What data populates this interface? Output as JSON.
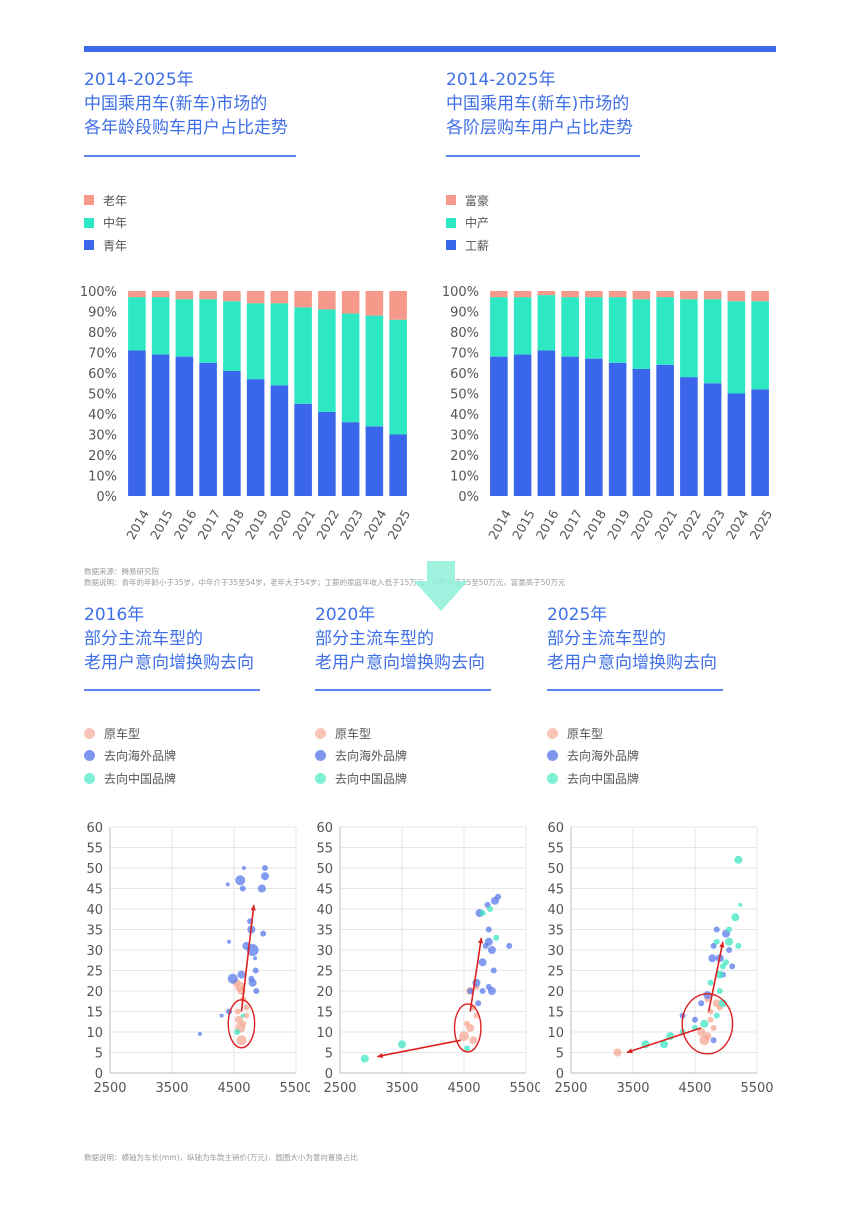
{
  "colors": {
    "accent": "#3b6be8",
    "old": "#f6998a",
    "middle": "#2ee8c4",
    "young": "#3a66ec",
    "arrow": "#dd2020",
    "circle": "#dd2020",
    "scatter_original": "#f5a896",
    "scatter_overseas": "#5b7be9",
    "scatter_china": "#3fe6c3"
  },
  "titles": {
    "age": [
      "2014-2025年",
      "中国乘用车(新车)市场的",
      "各年龄段购车用户占比走势"
    ],
    "tier": [
      "2014-2025年",
      "中国乘用车(新车)市场的",
      "各阶层购车用户占比走势"
    ],
    "s2016": [
      "2016年",
      "部分主流车型的",
      "老用户意向增换购去向"
    ],
    "s2020": [
      "2020年",
      "部分主流车型的",
      "老用户意向增换购去向"
    ],
    "s2025": [
      "2025年",
      "部分主流车型的",
      "老用户意向增换购去向"
    ]
  },
  "legends": {
    "age": [
      "老年",
      "中年",
      "青年"
    ],
    "tier": [
      "富豪",
      "中产",
      "工薪"
    ],
    "scatter": [
      "原车型",
      "去向海外品牌",
      "去向中国品牌"
    ]
  },
  "notes": {
    "source": "数据来源：腾易研究院",
    "explain": "数据说明：青年的年龄小于35岁，中年介于35至54岁，老年大于54岁；工薪的家庭年收入低于15万元，中产介于15至50万元，富豪高于50万元",
    "bottom": "数据说明：横轴为车长(mm)，纵轴为车款主销价(万元)，圆圈大小为意向置换占比"
  },
  "chart_data": [
    {
      "id": "age",
      "type": "bar",
      "stacked": true,
      "title": "2014-2025年 中国乘用车(新车)市场的 各年龄段购车用户占比走势",
      "categories": [
        "2014",
        "2015",
        "2016",
        "2017",
        "2018",
        "2019",
        "2020",
        "2021",
        "2022",
        "2023",
        "2024",
        "2025"
      ],
      "series": [
        {
          "name": "青年",
          "color": "#3a66ec",
          "values": [
            71,
            69,
            68,
            65,
            61,
            57,
            54,
            45,
            41,
            36,
            34,
            30
          ]
        },
        {
          "name": "中年",
          "color": "#2ee8c4",
          "values": [
            26,
            28,
            28,
            31,
            34,
            37,
            40,
            47,
            50,
            53,
            54,
            56
          ]
        },
        {
          "name": "老年",
          "color": "#f6998a",
          "values": [
            3,
            3,
            4,
            4,
            5,
            6,
            6,
            8,
            9,
            11,
            12,
            14
          ]
        }
      ],
      "ylim": [
        0,
        100
      ],
      "yticks": [
        "0%",
        "10%",
        "20%",
        "30%",
        "40%",
        "50%",
        "60%",
        "70%",
        "80%",
        "90%",
        "100%"
      ]
    },
    {
      "id": "tier",
      "type": "bar",
      "stacked": true,
      "title": "2014-2025年 中国乘用车(新车)市场的 各阶层购车用户占比走势",
      "categories": [
        "2014",
        "2015",
        "2016",
        "2017",
        "2018",
        "2019",
        "2020",
        "2021",
        "2022",
        "2023",
        "2024",
        "2025"
      ],
      "series": [
        {
          "name": "工薪",
          "color": "#3a66ec",
          "values": [
            68,
            69,
            71,
            68,
            67,
            65,
            62,
            64,
            58,
            55,
            50,
            52
          ]
        },
        {
          "name": "中产",
          "color": "#2ee8c4",
          "values": [
            29,
            28,
            27,
            29,
            30,
            32,
            34,
            33,
            38,
            41,
            45,
            43
          ]
        },
        {
          "name": "富豪",
          "color": "#f6998a",
          "values": [
            3,
            3,
            2,
            3,
            3,
            3,
            4,
            3,
            4,
            4,
            5,
            5
          ]
        }
      ],
      "ylim": [
        0,
        100
      ],
      "yticks": [
        "0%",
        "10%",
        "20%",
        "30%",
        "40%",
        "50%",
        "60%",
        "70%",
        "80%",
        "90%",
        "100%"
      ]
    },
    {
      "id": "s2016",
      "type": "scatter",
      "title": "2016年 部分主流车型的 老用户意向增换购去向",
      "xlabel": "车长(mm)",
      "ylabel": "主销价(万元)",
      "xlim": [
        2500,
        5500
      ],
      "ylim": [
        0,
        60
      ],
      "xticks": [
        "2500",
        "3500",
        "4500",
        "5500"
      ],
      "yticks": [
        "0",
        "5",
        "10",
        "15",
        "20",
        "25",
        "30",
        "35",
        "40",
        "45",
        "50",
        "55",
        "60"
      ],
      "series": [
        {
          "name": "原车型",
          "color": "#f5a896",
          "points": [
            [
              4600,
              11,
              5
            ],
            [
              4620,
              8,
              5
            ],
            [
              4580,
              13,
              4
            ],
            [
              4650,
              12,
              3
            ],
            [
              4560,
              15,
              3
            ],
            [
              4700,
              14,
              3
            ],
            [
              4600,
              21,
              5
            ],
            [
              4620,
              20,
              4
            ],
            [
              4540,
              22,
              4
            ],
            [
              4650,
              18,
              3
            ],
            [
              4700,
              16,
              3
            ]
          ]
        },
        {
          "name": "去向海外品牌",
          "color": "#5b7be9",
          "points": [
            [
              4420,
              15,
              3
            ],
            [
              4300,
              14,
              2
            ],
            [
              3950,
              9.5,
              2
            ],
            [
              4480,
              23,
              5
            ],
            [
              4620,
              24,
              4
            ],
            [
              4600,
              47,
              5
            ],
            [
              4640,
              45,
              3
            ],
            [
              4700,
              31,
              4
            ],
            [
              4800,
              30,
              6
            ],
            [
              4850,
              25,
              3
            ],
            [
              4780,
              35,
              4
            ],
            [
              4780,
              23,
              3
            ],
            [
              4800,
              22,
              4
            ],
            [
              4860,
              20,
              3
            ],
            [
              4950,
              45,
              4
            ],
            [
              5000,
              48,
              4
            ],
            [
              5000,
              50,
              3
            ],
            [
              4970,
              34,
              3
            ],
            [
              4840,
              28,
              2
            ],
            [
              4400,
              46,
              2
            ],
            [
              4660,
              50,
              2
            ],
            [
              4420,
              32,
              2
            ],
            [
              4760,
              37,
              3
            ]
          ]
        },
        {
          "name": "去向中国品牌",
          "color": "#3fe6c3",
          "points": [
            [
              4550,
              10,
              3
            ],
            [
              4640,
              14,
              2
            ]
          ]
        }
      ],
      "arrows": [
        [
          [
            4620,
            15
          ],
          [
            4820,
            41
          ]
        ]
      ],
      "circle": {
        "cx": 4620,
        "cy": 12,
        "rx": 4,
        "ry": 4
      }
    },
    {
      "id": "s2020",
      "type": "scatter",
      "title": "2020年 部分主流车型的 老用户意向增换购去向",
      "xlabel": "车长(mm)",
      "ylabel": "主销价(万元)",
      "xlim": [
        2500,
        5500
      ],
      "ylim": [
        0,
        60
      ],
      "xticks": [
        "2500",
        "3500",
        "4500",
        "5500"
      ],
      "yticks": [
        "0",
        "5",
        "10",
        "15",
        "20",
        "25",
        "30",
        "35",
        "40",
        "45",
        "50",
        "55",
        "60"
      ],
      "series": [
        {
          "name": "原车型",
          "color": "#f5a896",
          "points": [
            [
              4500,
              9,
              5
            ],
            [
              4600,
              11,
              4
            ],
            [
              4650,
              8,
              4
            ],
            [
              4700,
              14,
              3
            ],
            [
              4550,
              12,
              3
            ],
            [
              4650,
              16,
              3
            ],
            [
              4600,
              20,
              4
            ],
            [
              4700,
              21,
              3
            ]
          ]
        },
        {
          "name": "去向海外品牌",
          "color": "#5b7be9",
          "points": [
            [
              4600,
              20,
              3
            ],
            [
              4700,
              22,
              4
            ],
            [
              4800,
              27,
              4
            ],
            [
              4800,
              20,
              3
            ],
            [
              4750,
              39,
              4
            ],
            [
              4880,
              41,
              3
            ],
            [
              4900,
              35,
              3
            ],
            [
              4900,
              32,
              4
            ],
            [
              4950,
              30,
              4
            ],
            [
              4950,
              20,
              4
            ],
            [
              5000,
              42,
              4
            ],
            [
              5050,
              43,
              3
            ],
            [
              4980,
              25,
              3
            ],
            [
              4850,
              31,
              3
            ],
            [
              4900,
              21,
              3
            ],
            [
              5230,
              31,
              3
            ],
            [
              4730,
              17,
              3
            ]
          ]
        },
        {
          "name": "去向中国品牌",
          "color": "#3fe6c3",
          "points": [
            [
              2900,
              3.5,
              4
            ],
            [
              3500,
              7,
              4
            ],
            [
              4550,
              6,
              3
            ],
            [
              4800,
              39,
              3
            ],
            [
              4920,
              40,
              3
            ],
            [
              5020,
              33,
              3
            ]
          ]
        }
      ],
      "arrows": [
        [
          [
            4450,
            8
          ],
          [
            3100,
            4
          ]
        ],
        [
          [
            4600,
            15
          ],
          [
            4780,
            33
          ]
        ]
      ],
      "circle": {
        "cx": 4560,
        "cy": 11,
        "rx": 4,
        "ry": 4
      }
    },
    {
      "id": "s2025",
      "type": "scatter",
      "title": "2025年 部分主流车型的 老用户意向增换购去向",
      "xlabel": "车长(mm)",
      "ylabel": "主销价(万元)",
      "xlim": [
        2500,
        5500
      ],
      "ylim": [
        0,
        60
      ],
      "xticks": [
        "2500",
        "3500",
        "4500",
        "5500"
      ],
      "yticks": [
        "0",
        "5",
        "10",
        "15",
        "20",
        "25",
        "30",
        "35",
        "40",
        "45",
        "50",
        "55",
        "60"
      ],
      "series": [
        {
          "name": "原车型",
          "color": "#f5a896",
          "points": [
            [
              3250,
              5,
              4
            ],
            [
              4650,
              8,
              5
            ],
            [
              4700,
              9,
              4
            ],
            [
              4600,
              10,
              4
            ],
            [
              4750,
              13,
              3
            ],
            [
              4750,
              15,
              3
            ],
            [
              4850,
              17,
              4
            ],
            [
              4800,
              11,
              3
            ],
            [
              4700,
              18,
              3
            ],
            [
              4900,
              16,
              3
            ]
          ]
        },
        {
          "name": "去向海外品牌",
          "color": "#5b7be9",
          "points": [
            [
              4300,
              14,
              3
            ],
            [
              4500,
              13,
              3
            ],
            [
              4700,
              19,
              4
            ],
            [
              4780,
              28,
              4
            ],
            [
              4800,
              31,
              3
            ],
            [
              4850,
              35,
              3
            ],
            [
              4900,
              28,
              4
            ],
            [
              5000,
              34,
              4
            ],
            [
              5050,
              30,
              3
            ],
            [
              5100,
              26,
              3
            ],
            [
              4950,
              24,
              3
            ],
            [
              4800,
              8,
              3
            ],
            [
              4600,
              17,
              3
            ]
          ]
        },
        {
          "name": "去向中国品牌",
          "color": "#3fe6c3",
          "points": [
            [
              3700,
              7,
              4
            ],
            [
              4100,
              9,
              4
            ],
            [
              4000,
              7,
              4
            ],
            [
              4300,
              10,
              3
            ],
            [
              4500,
              11,
              3
            ],
            [
              4650,
              12,
              4
            ],
            [
              4850,
              14,
              3
            ],
            [
              4950,
              17,
              4
            ],
            [
              4900,
              24,
              4
            ],
            [
              5000,
              27,
              3
            ],
            [
              5050,
              32,
              4
            ],
            [
              5150,
              38,
              4
            ],
            [
              5200,
              31,
              3
            ],
            [
              5230,
              41,
              2
            ],
            [
              5200,
              52,
              4
            ],
            [
              4900,
              20,
              3
            ],
            [
              4750,
              22,
              3
            ],
            [
              4950,
              26,
              3
            ],
            [
              5050,
              35,
              3
            ],
            [
              4850,
              32,
              3
            ]
          ]
        }
      ],
      "arrows": [
        [
          [
            4600,
            11
          ],
          [
            3400,
            5
          ]
        ],
        [
          [
            4720,
            15
          ],
          [
            4950,
            32
          ]
        ]
      ],
      "circle": {
        "cx": 4700,
        "cy": 12,
        "rx": 4,
        "ry": 4
      }
    }
  ]
}
